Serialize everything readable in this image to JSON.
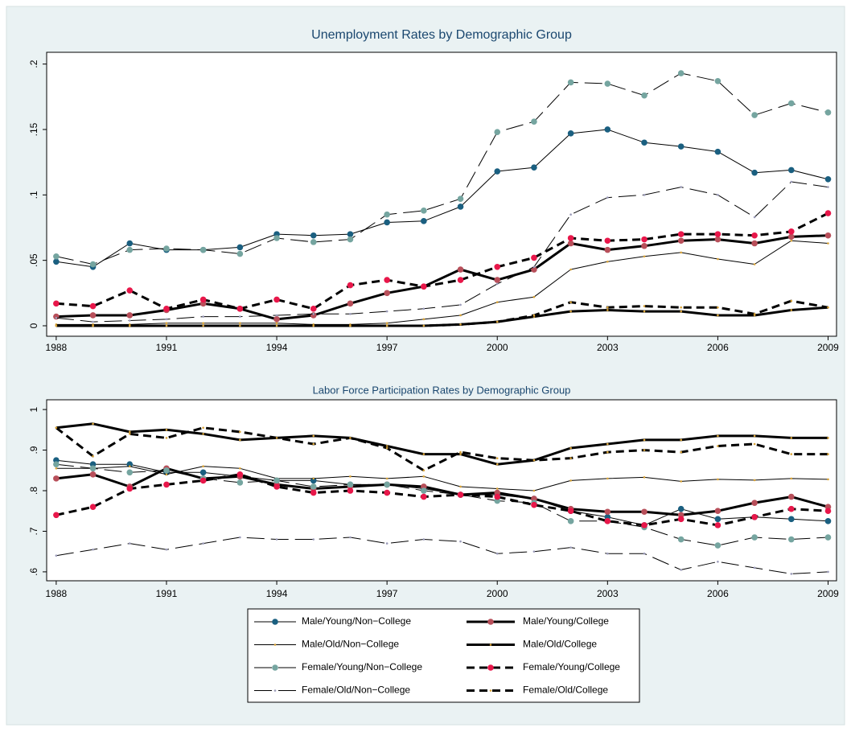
{
  "chart_data": [
    {
      "type": "line",
      "title": "Unemployment Rates by Demographic Group",
      "x": [
        1988,
        1989,
        1990,
        1991,
        1992,
        1993,
        1994,
        1995,
        1996,
        1997,
        1998,
        1999,
        2000,
        2001,
        2002,
        2003,
        2004,
        2005,
        2006,
        2007,
        2008,
        2009
      ],
      "xlim": [
        1987.74,
        2009.23
      ],
      "xticks": [
        1988,
        1991,
        1994,
        1997,
        2000,
        2003,
        2006,
        2009
      ],
      "ylim": [
        -0.008,
        0.209
      ],
      "yticks": [
        0,
        {
          "value": 0.05,
          "label": ".05"
        },
        {
          "value": 0.1,
          "label": ".1"
        },
        {
          "value": 0.15,
          "label": ".15"
        },
        {
          "value": 0.2,
          "label": ".2"
        }
      ],
      "grid": false,
      "series": [
        {
          "name": "Male/Young/Non−College",
          "color": "#1a5f80",
          "width": 1,
          "dash": "solid",
          "marker": "circle",
          "values": [
            0.049,
            0.045,
            0.063,
            0.058,
            0.058,
            0.06,
            0.07,
            0.069,
            0.07,
            0.079,
            0.08,
            0.091,
            0.118,
            0.121,
            0.147,
            0.15,
            0.14,
            0.137,
            0.133,
            0.117,
            0.119,
            0.112
          ]
        },
        {
          "name": "Male/Young/College",
          "color": "#b84f5a",
          "width": 3,
          "dash": "solid",
          "marker": "circle",
          "values": [
            0.007,
            0.008,
            0.008,
            0.012,
            0.017,
            0.013,
            0.005,
            0.008,
            0.017,
            0.025,
            0.03,
            0.043,
            0.035,
            0.043,
            0.063,
            0.058,
            0.061,
            0.065,
            0.066,
            0.063,
            0.068,
            0.069
          ]
        },
        {
          "name": "Male/Old/Non−College",
          "color": "#d9a336",
          "width": 1,
          "dash": "solid",
          "marker": "point",
          "values": [
            0.001,
            0.001,
            0.001,
            0.002,
            0.002,
            0.002,
            0.002,
            0.001,
            0.001,
            0.002,
            0.005,
            0.008,
            0.018,
            0.022,
            0.043,
            0.049,
            0.053,
            0.056,
            0.051,
            0.047,
            0.065,
            0.063
          ]
        },
        {
          "name": "Male/Old/College",
          "color": "#d9a336",
          "width": 3,
          "dash": "solid",
          "marker": "point",
          "values": [
            0,
            0,
            0,
            0,
            0,
            0,
            0,
            0,
            0,
            0,
            0,
            0.001,
            0.003,
            0.007,
            0.011,
            0.012,
            0.011,
            0.011,
            0.008,
            0.008,
            0.012,
            0.014
          ]
        },
        {
          "name": "Female/Young/Non−College",
          "color": "#75a5a0",
          "width": 1,
          "dash": "longdash",
          "marker": "circle",
          "values": [
            0.053,
            0.047,
            0.058,
            0.059,
            0.058,
            0.055,
            0.067,
            0.064,
            0.066,
            0.085,
            0.088,
            0.097,
            0.148,
            0.156,
            0.186,
            0.185,
            0.176,
            0.193,
            0.187,
            0.161,
            0.17,
            0.163
          ]
        },
        {
          "name": "Female/Young/College",
          "color": "#e8174a",
          "width": 3,
          "dash": "dash",
          "marker": "circle",
          "values": [
            0.017,
            0.015,
            0.027,
            0.013,
            0.02,
            0.013,
            0.02,
            0.013,
            0.031,
            0.035,
            0.03,
            0.035,
            0.045,
            0.052,
            0.067,
            0.065,
            0.066,
            0.07,
            0.07,
            0.069,
            0.072,
            0.086
          ]
        },
        {
          "name": "Female/Old/Non−College",
          "color": "#9a9ab8",
          "width": 1,
          "dash": "longdash",
          "marker": "point",
          "values": [
            0.006,
            0.003,
            0.004,
            0.005,
            0.007,
            0.007,
            0.008,
            0.009,
            0.009,
            0.011,
            0.013,
            0.016,
            0.032,
            0.045,
            0.085,
            0.098,
            0.1,
            0.106,
            0.1,
            0.083,
            0.11,
            0.106
          ]
        },
        {
          "name": "Female/Old/College",
          "color": "#d9a336",
          "width": 3,
          "dash": "dash",
          "marker": "point",
          "values": [
            0,
            0,
            0,
            0,
            0,
            0,
            0,
            0,
            0,
            0,
            0,
            0.001,
            0.003,
            0.008,
            0.018,
            0.014,
            0.015,
            0.014,
            0.014,
            0.009,
            0.019,
            0.014
          ]
        }
      ]
    },
    {
      "type": "line",
      "title": "Labor Force Participation Rates by Demographic Group",
      "x": [
        1988,
        1989,
        1990,
        1991,
        1992,
        1993,
        1994,
        1995,
        1996,
        1997,
        1998,
        1999,
        2000,
        2001,
        2002,
        2003,
        2004,
        2005,
        2006,
        2007,
        2008,
        2009
      ],
      "xlim": [
        1987.74,
        2009.23
      ],
      "xticks": [
        1988,
        1991,
        1994,
        1997,
        2000,
        2003,
        2006,
        2009
      ],
      "ylim": [
        0.578,
        1.024
      ],
      "yticks": [
        {
          "value": 0.6,
          "label": ".6"
        },
        {
          "value": 0.7,
          "label": ".7"
        },
        {
          "value": 0.8,
          "label": ".8"
        },
        {
          "value": 0.9,
          "label": ".9"
        },
        1
      ],
      "grid": false,
      "series": [
        {
          "color": "#1a5f80",
          "width": 1,
          "dash": "solid",
          "marker": "circle",
          "values": [
            0.875,
            0.865,
            0.865,
            0.845,
            0.845,
            0.835,
            0.825,
            0.825,
            0.815,
            0.815,
            0.805,
            0.79,
            0.79,
            0.78,
            0.75,
            0.735,
            0.715,
            0.755,
            0.73,
            0.735,
            0.73,
            0.725
          ]
        },
        {
          "color": "#b84f5a",
          "width": 3,
          "dash": "solid",
          "marker": "circle",
          "values": [
            0.83,
            0.84,
            0.81,
            0.855,
            0.83,
            0.835,
            0.815,
            0.805,
            0.81,
            0.815,
            0.81,
            0.79,
            0.795,
            0.78,
            0.755,
            0.748,
            0.748,
            0.74,
            0.75,
            0.77,
            0.785,
            0.76
          ]
        },
        {
          "color": "#d9a336",
          "width": 1,
          "dash": "solid",
          "marker": "point",
          "values": [
            0.855,
            0.855,
            0.86,
            0.84,
            0.86,
            0.855,
            0.83,
            0.83,
            0.835,
            0.83,
            0.835,
            0.81,
            0.805,
            0.8,
            0.825,
            0.83,
            0.833,
            0.823,
            0.828,
            0.826,
            0.83,
            0.828
          ]
        },
        {
          "color": "#d9a336",
          "width": 3,
          "dash": "solid",
          "marker": "point",
          "values": [
            0.955,
            0.965,
            0.945,
            0.95,
            0.94,
            0.925,
            0.93,
            0.935,
            0.93,
            0.91,
            0.89,
            0.89,
            0.865,
            0.875,
            0.905,
            0.915,
            0.925,
            0.925,
            0.935,
            0.935,
            0.93,
            0.93
          ]
        },
        {
          "color": "#75a5a0",
          "width": 1,
          "dash": "longdash",
          "marker": "circle",
          "values": [
            0.865,
            0.855,
            0.845,
            0.85,
            0.83,
            0.82,
            0.825,
            0.81,
            0.815,
            0.815,
            0.8,
            0.79,
            0.775,
            0.77,
            0.725,
            0.725,
            0.71,
            0.68,
            0.665,
            0.685,
            0.68,
            0.685
          ]
        },
        {
          "color": "#e8174a",
          "width": 3,
          "dash": "dash",
          "marker": "circle",
          "values": [
            0.74,
            0.76,
            0.805,
            0.815,
            0.825,
            0.84,
            0.81,
            0.795,
            0.8,
            0.795,
            0.785,
            0.79,
            0.785,
            0.765,
            0.75,
            0.725,
            0.715,
            0.73,
            0.715,
            0.735,
            0.755,
            0.75
          ]
        },
        {
          "color": "#9a9ab8",
          "width": 1,
          "dash": "longdash",
          "marker": "point",
          "values": [
            0.64,
            0.655,
            0.67,
            0.655,
            0.67,
            0.685,
            0.68,
            0.68,
            0.685,
            0.67,
            0.68,
            0.675,
            0.645,
            0.65,
            0.66,
            0.645,
            0.645,
            0.605,
            0.625,
            0.61,
            0.595,
            0.6
          ]
        },
        {
          "color": "#d9a336",
          "width": 3,
          "dash": "dash",
          "marker": "point",
          "values": [
            0.955,
            0.885,
            0.94,
            0.93,
            0.955,
            0.945,
            0.93,
            0.915,
            0.93,
            0.905,
            0.85,
            0.895,
            0.88,
            0.875,
            0.88,
            0.895,
            0.9,
            0.895,
            0.91,
            0.915,
            0.89,
            0.89
          ]
        }
      ]
    }
  ]
}
